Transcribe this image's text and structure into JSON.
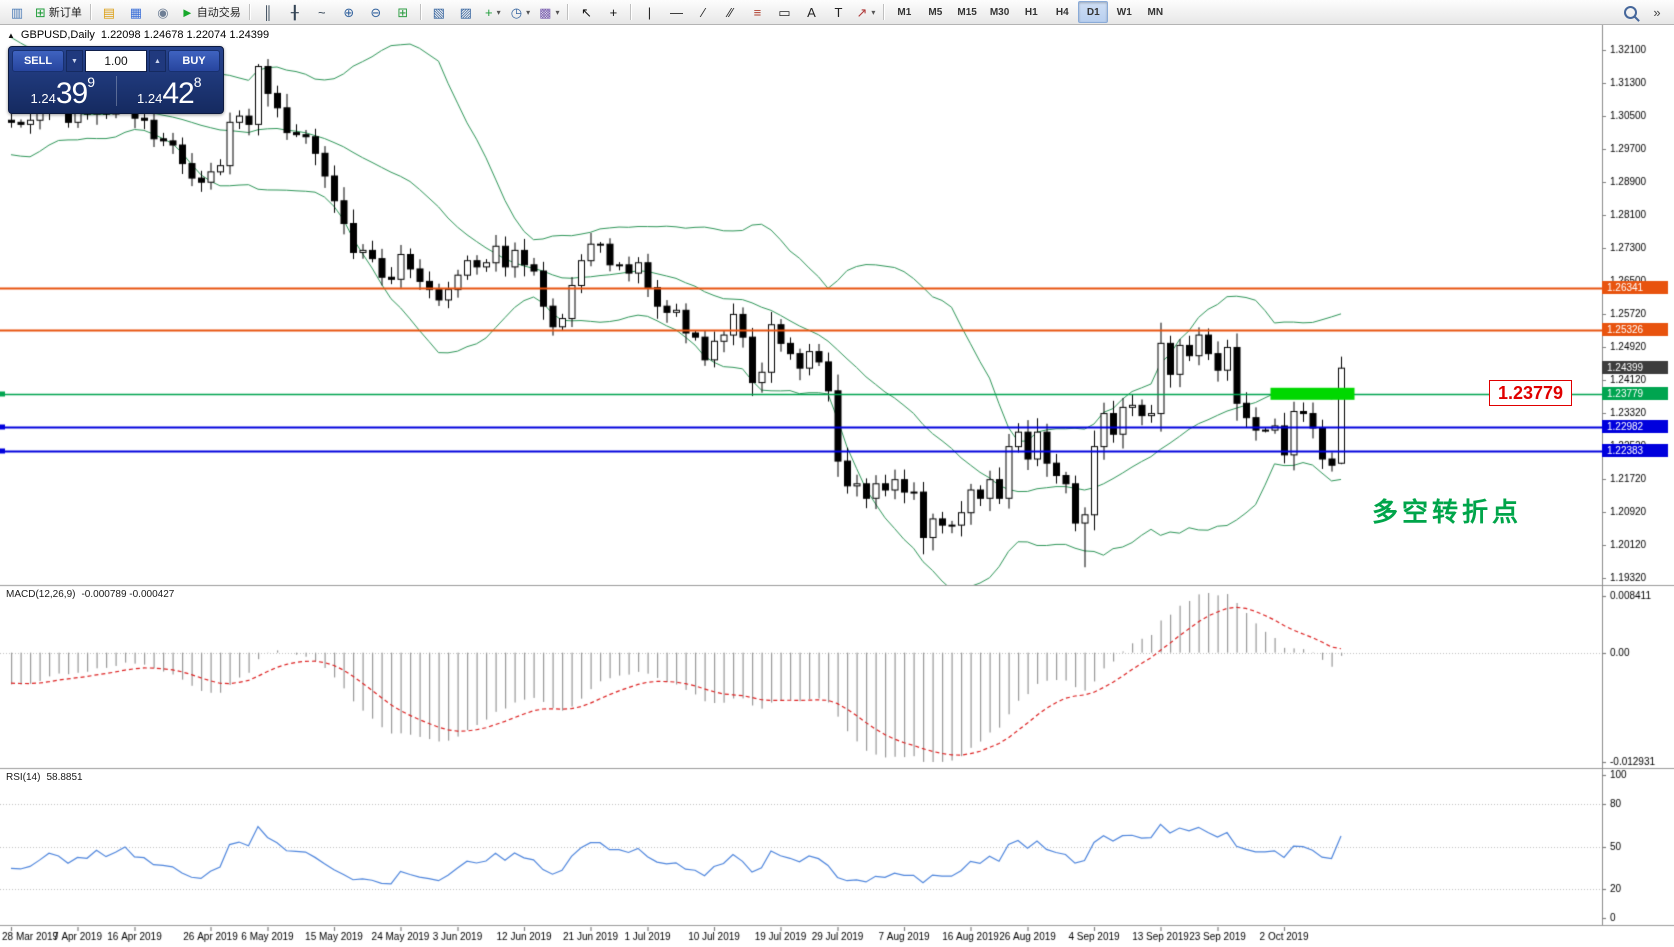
{
  "toolbar": {
    "groups": [
      {
        "items": [
          {
            "name": "new-chart-icon",
            "glyph": "▥",
            "color": "#4a7ab5"
          },
          {
            "name": "new-order-button",
            "glyph": "⊞",
            "color": "#1f9d3a",
            "label": "新订单"
          }
        ]
      },
      {
        "items": [
          {
            "name": "profiles-icon",
            "glyph": "▤",
            "color": "#dca018"
          },
          {
            "name": "market-watch-icon",
            "glyph": "▦",
            "color": "#3a6fd8"
          },
          {
            "name": "navigator-icon",
            "glyph": "◉",
            "color": "#6f7f95"
          },
          {
            "name": "autotrading-button",
            "glyph": "►",
            "color": "#17a82b",
            "label": "自动交易"
          }
        ]
      },
      {
        "items": [
          {
            "name": "bar-chart-icon",
            "glyph": "║",
            "color": "#334455"
          },
          {
            "name": "candlestick-chart-icon",
            "glyph": "╂",
            "color": "#334455"
          },
          {
            "name": "line-chart-icon",
            "glyph": "~",
            "color": "#334455"
          },
          {
            "name": "zoom-in-icon",
            "glyph": "⊕",
            "color": "#35649f"
          },
          {
            "name": "zoom-out-icon",
            "glyph": "⊖",
            "color": "#35649f"
          },
          {
            "name": "tile-windows-icon",
            "glyph": "⊞",
            "color": "#2f9e44"
          }
        ]
      },
      {
        "items": [
          {
            "name": "cascade-windows-icon",
            "glyph": "▧",
            "color": "#35649f"
          },
          {
            "name": "tile-vertically-icon",
            "glyph": "▨",
            "color": "#35649f"
          },
          {
            "name": "indicators-button",
            "glyph": "+",
            "color": "#1f9d3a",
            "dropdown": true
          },
          {
            "name": "periods-button",
            "glyph": "◷",
            "color": "#35649f",
            "dropdown": true
          },
          {
            "name": "templates-button",
            "glyph": "▩",
            "color": "#7a5fb0",
            "dropdown": true
          }
        ]
      },
      {
        "items": [
          {
            "name": "cursor-button",
            "glyph": "↖",
            "color": "#111111"
          },
          {
            "name": "crosshair-button",
            "glyph": "+",
            "color": "#111111"
          }
        ]
      },
      {
        "items": [
          {
            "name": "vertical-line-icon",
            "glyph": "|",
            "color": "#222222"
          },
          {
            "name": "horizontal-line-icon",
            "glyph": "—",
            "color": "#222222"
          },
          {
            "name": "trendline-icon",
            "glyph": "∕",
            "color": "#222222"
          },
          {
            "name": "channel-icon",
            "glyph": "∕∕",
            "color": "#222222"
          },
          {
            "name": "fibonacci-icon",
            "glyph": "≡",
            "color": "#b04030"
          },
          {
            "name": "shapes-icon",
            "glyph": "▭",
            "color": "#222222"
          },
          {
            "name": "text-icon",
            "glyph": "A",
            "color": "#222222"
          },
          {
            "name": "text-label-icon",
            "glyph": "T",
            "color": "#222222"
          },
          {
            "name": "arrows-icon",
            "glyph": "↗",
            "color": "#b03a3a",
            "dropdown": true
          }
        ]
      },
      {
        "items": [
          {
            "name": "tf-m1-button",
            "label": "M1",
            "tf": true
          },
          {
            "name": "tf-m5-button",
            "label": "M5",
            "tf": true
          },
          {
            "name": "tf-m15-button",
            "label": "M15",
            "tf": true
          },
          {
            "name": "tf-m30-button",
            "label": "M30",
            "tf": true
          },
          {
            "name": "tf-h1-button",
            "label": "H1",
            "tf": true
          },
          {
            "name": "tf-h4-button",
            "label": "H4",
            "tf": true
          },
          {
            "name": "tf-d1-button",
            "label": "D1",
            "tf": true,
            "active": true
          },
          {
            "name": "tf-w1-button",
            "label": "W1",
            "tf": true
          },
          {
            "name": "tf-mn-button",
            "label": "MN",
            "tf": true
          }
        ]
      },
      {
        "align": "right",
        "items": [
          {
            "name": "search-icon",
            "css": "lens"
          },
          {
            "name": "toolbar-overflow-icon",
            "glyph": "»",
            "color": "#444444"
          }
        ]
      }
    ]
  },
  "chart_title": {
    "collapse_icon": "▲",
    "symbol": "GBPUSD,Daily",
    "ohlc": "1.22098 1.24678 1.22074 1.24399"
  },
  "one_click": {
    "sell_label": "SELL",
    "buy_label": "BUY",
    "volume": "1.00",
    "down_icon": "▼",
    "up_icon": "▲",
    "sell_price": {
      "head": "1.24",
      "big": "39",
      "sup": "9"
    },
    "buy_price": {
      "head": "1.24",
      "big": "42",
      "sup": "8"
    }
  },
  "indicators": {
    "macd_label": "MACD(12,26,9)",
    "macd_values": "-0.000789 -0.000427",
    "rsi_label": "RSI(14)",
    "rsi_value": "58.8851"
  },
  "callout": {
    "text": "1.23779",
    "color": "#e00000"
  },
  "annotation": {
    "text": "多空转折点",
    "color": "#00a54a"
  },
  "chart_data": {
    "type": "candlestick",
    "symbol": "GBPUSD",
    "timeframe": "Daily",
    "last_ohlc": {
      "open": 1.22098,
      "high": 1.24678,
      "low": 1.22074,
      "close": 1.24399
    },
    "main_ticks": [
      "1.32100",
      "1.31300",
      "1.30500",
      "1.29700",
      "1.28900",
      "1.28100",
      "1.27300",
      "1.26500",
      "1.25720",
      "1.24920",
      "1.24120",
      "1.23320",
      "1.22520",
      "1.21720",
      "1.20920",
      "1.20120",
      "1.19320"
    ],
    "macd_ticks": [
      "0.008411",
      "0.00",
      "-0.012931"
    ],
    "rsi_ticks": [
      {
        "label": "100",
        "v": 100
      },
      {
        "label": "80",
        "v": 80
      },
      {
        "label": "50",
        "v": 50
      },
      {
        "label": "20",
        "v": 20
      },
      {
        "label": "0",
        "v": 0
      }
    ],
    "dates": [
      {
        "label": "28 Mar 2019",
        "i": 0
      },
      {
        "label": "7 Apr 2019",
        "i": 7
      },
      {
        "label": "16 Apr 2019",
        "i": 13
      },
      {
        "label": "26 Apr 2019",
        "i": 21
      },
      {
        "label": "6 May 2019",
        "i": 27
      },
      {
        "label": "15 May 2019",
        "i": 34
      },
      {
        "label": "24 May 2019",
        "i": 41
      },
      {
        "label": "3 Jun 2019",
        "i": 47
      },
      {
        "label": "12 Jun 2019",
        "i": 54
      },
      {
        "label": "21 Jun 2019",
        "i": 61
      },
      {
        "label": "1 Jul 2019",
        "i": 67
      },
      {
        "label": "10 Jul 2019",
        "i": 74
      },
      {
        "label": "19 Jul 2019",
        "i": 81
      },
      {
        "label": "29 Jul 2019",
        "i": 87
      },
      {
        "label": "7 Aug 2019",
        "i": 94
      },
      {
        "label": "16 Aug 2019",
        "i": 101
      },
      {
        "label": "26 Aug 2019",
        "i": 107
      },
      {
        "label": "4 Sep 2019",
        "i": 114
      },
      {
        "label": "13 Sep 2019",
        "i": 121
      },
      {
        "label": "23 Sep 2019",
        "i": 127
      },
      {
        "label": "2 Oct 2019",
        "i": 134
      }
    ],
    "levels": [
      {
        "price": 1.26341,
        "label": "1.26341",
        "color": "#e8530e",
        "width": 2,
        "handle": false
      },
      {
        "price": 1.25326,
        "label": "1.25326",
        "color": "#e8530e",
        "width": 2,
        "handle": false
      },
      {
        "price": 1.24399,
        "label": "1.24399",
        "color": "#3c3c3c",
        "width": 0,
        "handle": false,
        "current": true
      },
      {
        "price": 1.23779,
        "label": "1.23779",
        "color": "#00a550",
        "width": 1.5,
        "handle": true
      },
      {
        "price": 1.22982,
        "label": "1.22982",
        "color": "#0000dd",
        "width": 2,
        "handle": true
      },
      {
        "price": 1.22383,
        "label": "1.22383",
        "color": "#0000dd",
        "width": 2,
        "handle": true
      }
    ],
    "highlight": {
      "from_index": 133,
      "to_index": 141,
      "price": 1.23779,
      "height": 12,
      "color": "#00d800"
    },
    "candle_colors": {
      "bull": "#ffffff",
      "bear": "#000000",
      "outline": "#000000"
    },
    "bollinger": {
      "period": 20,
      "deviation": 2,
      "color": "#2e9658"
    },
    "macd": {
      "fast": 12,
      "slow": 26,
      "signal": 9,
      "hist_color": "#999999",
      "signal_color": "#dd2222"
    },
    "rsi": {
      "period": 14,
      "color": "#4f86dd",
      "levels": [
        80,
        50,
        20
      ]
    },
    "pre_closes": [
      1.32,
      1.3185,
      1.324,
      1.322,
      1.318,
      1.313,
      1.309,
      1.312,
      1.308,
      1.3055,
      1.3022,
      1.299,
      1.301,
      1.306,
      1.311,
      1.3085,
      1.307,
      1.305,
      1.304
    ],
    "closes": [
      1.3035,
      1.303,
      1.304,
      1.3065,
      1.3095,
      1.308,
      1.3035,
      1.306,
      1.3055,
      1.309,
      1.3055,
      1.3075,
      1.31,
      1.3045,
      1.304,
      1.2995,
      1.299,
      1.298,
      1.2935,
      1.29,
      1.289,
      1.2915,
      1.293,
      1.3035,
      1.305,
      1.303,
      1.317,
      1.3105,
      1.307,
      1.301,
      1.3005,
      1.3,
      1.296,
      1.2905,
      1.2845,
      1.279,
      1.272,
      1.2725,
      1.2705,
      1.266,
      1.2655,
      1.2715,
      1.268,
      1.265,
      1.263,
      1.2605,
      1.263,
      1.2665,
      1.27,
      1.2685,
      1.2695,
      1.2735,
      1.2685,
      1.2725,
      1.269,
      1.2675,
      1.259,
      1.254,
      1.256,
      1.264,
      1.27,
      1.274,
      1.274,
      1.269,
      1.269,
      1.267,
      1.2695,
      1.2635,
      1.259,
      1.2575,
      1.258,
      1.2525,
      1.2515,
      1.246,
      1.2505,
      1.252,
      1.257,
      1.2515,
      1.2405,
      1.243,
      1.2545,
      1.25,
      1.2475,
      1.244,
      1.248,
      1.2455,
      1.2385,
      1.2215,
      1.2155,
      1.216,
      1.2125,
      1.216,
      1.2145,
      1.217,
      1.214,
      1.214,
      1.203,
      1.2075,
      1.206,
      1.206,
      1.209,
      1.2145,
      1.2125,
      1.217,
      1.2125,
      1.225,
      1.2285,
      1.222,
      1.2285,
      1.221,
      1.218,
      1.216,
      1.2065,
      1.2085,
      1.225,
      1.233,
      1.228,
      1.2345,
      1.235,
      1.2325,
      1.233,
      1.25,
      1.2425,
      1.2495,
      1.247,
      1.252,
      1.2475,
      1.2435,
      1.249,
      1.2355,
      1.232,
      1.229,
      1.229,
      1.23,
      1.223,
      1.2335,
      1.233,
      1.2295,
      1.222,
      1.2205,
      1.24399
    ],
    "overrides": {
      "26": {
        "high": 1.3176
      },
      "113": {
        "low": 1.1958
      },
      "140": {
        "open": 1.22098,
        "high": 1.24678,
        "low": 1.22074,
        "close": 1.24399
      }
    }
  }
}
